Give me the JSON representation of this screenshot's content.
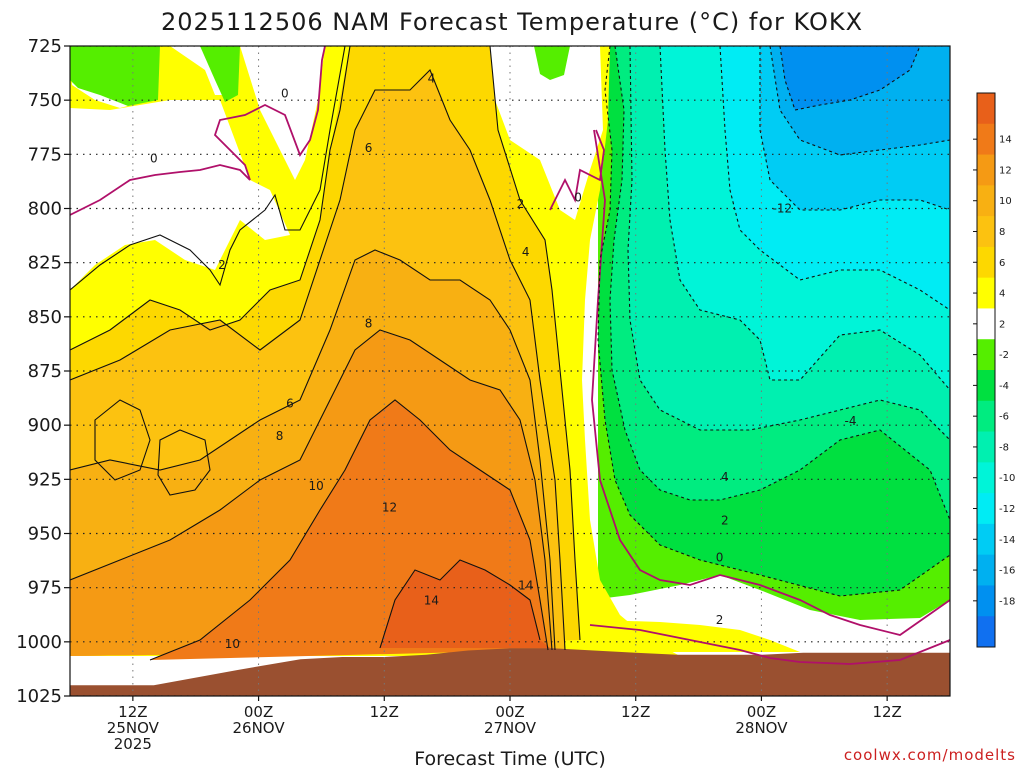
{
  "chart_data": {
    "type": "contour",
    "title": "2025112506 NAM Forecast Temperature (°C) for KOKX",
    "xlabel": "Forecast Time (UTC)",
    "ylabel": "",
    "credit": "coolwx.com/modelts",
    "y_ticks": [
      725,
      750,
      775,
      800,
      825,
      850,
      875,
      900,
      925,
      950,
      975,
      1000,
      1025
    ],
    "y_range_hpa": [
      725,
      1025
    ],
    "x_range_hours": [
      0,
      84
    ],
    "x_ticks": [
      {
        "hour": 6,
        "lines": [
          "12Z",
          "25NOV",
          "2025"
        ]
      },
      {
        "hour": 18,
        "lines": [
          "00Z",
          "26NOV"
        ]
      },
      {
        "hour": 30,
        "lines": [
          "12Z"
        ]
      },
      {
        "hour": 42,
        "lines": [
          "00Z",
          "27NOV"
        ]
      },
      {
        "hour": 54,
        "lines": [
          "12Z"
        ]
      },
      {
        "hour": 66,
        "lines": [
          "00Z",
          "28NOV"
        ]
      },
      {
        "hour": 78,
        "lines": [
          "12Z"
        ]
      }
    ],
    "colorbar": [
      {
        "label": "",
        "color": "#e8601a"
      },
      {
        "label": "14",
        "color": "#f07a18"
      },
      {
        "label": "12",
        "color": "#f59a14"
      },
      {
        "label": "10",
        "color": "#f8b012"
      },
      {
        "label": "8",
        "color": "#fcc210"
      },
      {
        "label": "6",
        "color": "#fdd800"
      },
      {
        "label": "4",
        "color": "#ffff00"
      },
      {
        "label": "2",
        "color": "#ffffff"
      },
      {
        "label": "-2",
        "color": "#55ee00"
      },
      {
        "label": "-4",
        "color": "#00e040"
      },
      {
        "label": "-6",
        "color": "#00ec80"
      },
      {
        "label": "-8",
        "color": "#00f0b0"
      },
      {
        "label": "-10",
        "color": "#00f4d8"
      },
      {
        "label": "-12",
        "color": "#00ecf4"
      },
      {
        "label": "-14",
        "color": "#00ccf4"
      },
      {
        "label": "-16",
        "color": "#00b0f0"
      },
      {
        "label": "-18",
        "color": "#0090f0"
      },
      {
        "label": "",
        "color": "#1070f0"
      }
    ],
    "contour_labels": [
      {
        "text": "0",
        "hour": 8,
        "hpa": 777
      },
      {
        "text": "0",
        "hour": 20.5,
        "hpa": 747
      },
      {
        "text": "0",
        "hour": 48.5,
        "hpa": 795
      },
      {
        "text": "0",
        "hour": 62,
        "hpa": 961
      },
      {
        "text": "2",
        "hour": 14.5,
        "hpa": 826
      },
      {
        "text": "2",
        "hour": 43,
        "hpa": 798
      },
      {
        "text": "2",
        "hour": 62,
        "hpa": 990
      },
      {
        "text": "2",
        "hour": 62.5,
        "hpa": 944
      },
      {
        "text": "4",
        "hour": 34.5,
        "hpa": 740
      },
      {
        "text": "4",
        "hour": 43.5,
        "hpa": 820
      },
      {
        "text": "4",
        "hour": 62.5,
        "hpa": 924
      },
      {
        "text": "-4",
        "hour": 74.5,
        "hpa": 898
      },
      {
        "text": "-12",
        "hour": 68,
        "hpa": 800
      },
      {
        "text": "6",
        "hour": 28.5,
        "hpa": 772
      },
      {
        "text": "6",
        "hour": 21,
        "hpa": 890
      },
      {
        "text": "8",
        "hour": 28.5,
        "hpa": 853
      },
      {
        "text": "8",
        "hour": 20,
        "hpa": 905
      },
      {
        "text": "10",
        "hour": 23.5,
        "hpa": 928
      },
      {
        "text": "10",
        "hour": 15.5,
        "hpa": 1001
      },
      {
        "text": "12",
        "hour": 30.5,
        "hpa": 938
      },
      {
        "text": "14",
        "hour": 34.5,
        "hpa": 981
      },
      {
        "text": "14",
        "hour": 43.5,
        "hpa": 974
      }
    ],
    "series": [
      {
        "name": "surface_pressure_hpa",
        "hours": [
          0,
          8,
          16,
          22,
          26,
          30,
          34,
          38,
          42,
          46,
          50,
          54,
          58,
          62,
          66,
          70,
          74,
          78,
          82,
          84
        ],
        "values": [
          1020,
          1020,
          1013,
          1008,
          1007,
          1007,
          1006,
          1004,
          1003,
          1003,
          1004,
          1005,
          1006,
          1006,
          1006,
          1005,
          1005,
          1005,
          1005,
          1005
        ]
      }
    ]
  }
}
